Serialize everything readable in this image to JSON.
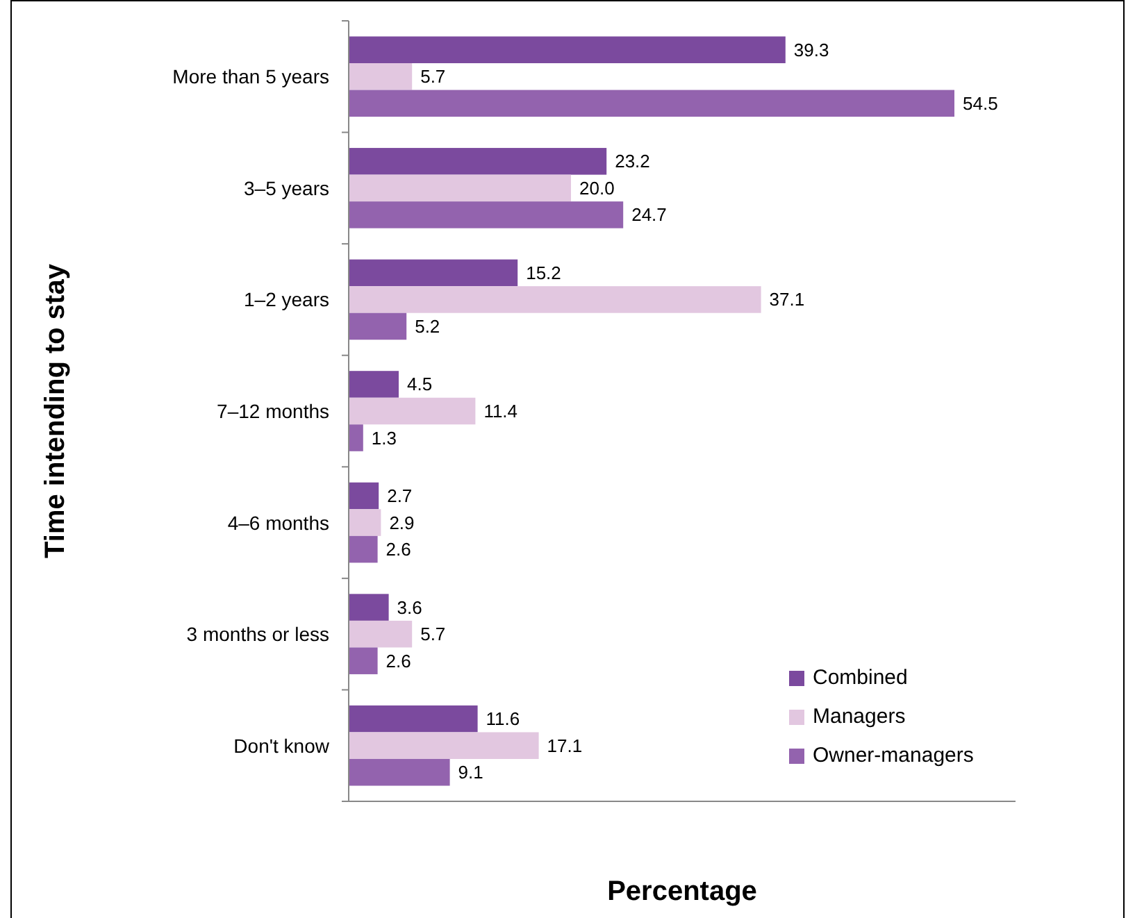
{
  "chart_data": {
    "type": "bar",
    "orientation": "horizontal",
    "xlabel": "Percentage",
    "ylabel": "Time intending to stay",
    "categories": [
      "More than 5 years",
      "3–5 years",
      "1–2 years",
      "7–12 months",
      "4–6 months",
      "3 months or less",
      "Don't know"
    ],
    "series": [
      {
        "name": "Combined",
        "color": "#7b4a9e",
        "values": [
          39.3,
          23.2,
          15.2,
          4.5,
          2.7,
          3.6,
          11.6
        ],
        "value_labels": [
          "39.3",
          "23.2",
          "15.2",
          "4.5",
          "2.7",
          "3.6",
          "11.6"
        ]
      },
      {
        "name": "Managers",
        "color": "#e2c7e0",
        "values": [
          5.7,
          20.0,
          37.1,
          11.4,
          2.9,
          5.7,
          17.1
        ],
        "value_labels": [
          "5.7",
          "20.0",
          "37.1",
          "11.4",
          "2.9",
          "5.7",
          "17.1"
        ]
      },
      {
        "name": "Owner-managers",
        "color": "#9363ae",
        "values": [
          54.5,
          24.7,
          5.2,
          1.3,
          2.6,
          2.6,
          9.1
        ],
        "value_labels": [
          "54.5",
          "24.7",
          "5.2",
          "1.3",
          "2.6",
          "2.6",
          "9.1"
        ]
      }
    ],
    "xlim": [
      0,
      60
    ],
    "tick_labels": "y",
    "legend": "bottom right"
  }
}
